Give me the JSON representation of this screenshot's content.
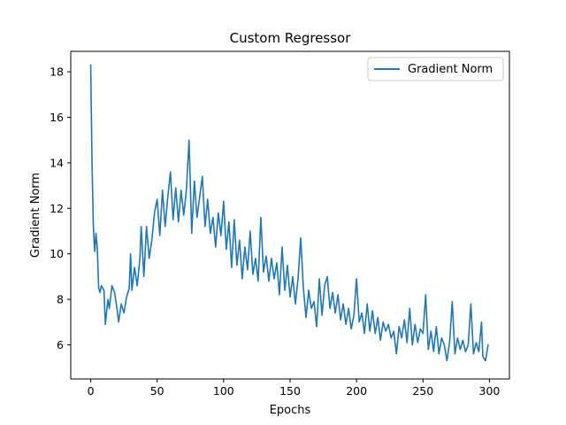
{
  "chart_data": {
    "type": "line",
    "title": "Custom Regressor",
    "xlabel": "Epochs",
    "ylabel": "Gradient Norm",
    "xlim": [
      -15,
      315
    ],
    "ylim": [
      4.5,
      18.9
    ],
    "xticks": [
      0,
      50,
      100,
      150,
      200,
      250,
      300
    ],
    "yticks": [
      6,
      8,
      10,
      12,
      14,
      16,
      18
    ],
    "grid": false,
    "legend": {
      "position": "top-right"
    },
    "series": [
      {
        "name": "Gradient Norm",
        "color": "#1f77b4",
        "keypoints": [
          [
            0,
            18.3
          ],
          [
            1,
            14.0
          ],
          [
            2,
            11.2
          ],
          [
            3,
            10.1
          ],
          [
            4,
            10.9
          ],
          [
            5,
            10.2
          ],
          [
            6,
            8.5
          ],
          [
            7,
            8.3
          ],
          [
            8,
            8.6
          ],
          [
            10,
            8.4
          ],
          [
            11,
            6.9
          ],
          [
            13,
            8.0
          ],
          [
            14,
            7.6
          ],
          [
            16,
            8.6
          ],
          [
            18,
            8.3
          ],
          [
            20,
            7.5
          ],
          [
            21,
            7.0
          ],
          [
            23,
            7.8
          ],
          [
            25,
            7.4
          ],
          [
            27,
            8.1
          ],
          [
            29,
            8.5
          ],
          [
            30,
            10.0
          ],
          [
            31,
            8.4
          ],
          [
            33,
            9.4
          ],
          [
            35,
            8.6
          ],
          [
            37,
            9.8
          ],
          [
            38,
            11.2
          ],
          [
            40,
            9.0
          ],
          [
            42,
            11.2
          ],
          [
            44,
            9.8
          ],
          [
            46,
            10.6
          ],
          [
            48,
            11.8
          ],
          [
            50,
            12.4
          ],
          [
            52,
            10.8
          ],
          [
            54,
            12.8
          ],
          [
            56,
            11.2
          ],
          [
            58,
            12.5
          ],
          [
            60,
            13.6
          ],
          [
            62,
            11.5
          ],
          [
            64,
            12.9
          ],
          [
            66,
            11.4
          ],
          [
            68,
            12.8
          ],
          [
            70,
            11.7
          ],
          [
            72,
            12.8
          ],
          [
            74,
            15.0
          ],
          [
            76,
            10.9
          ],
          [
            78,
            13.2
          ],
          [
            80,
            11.6
          ],
          [
            82,
            12.5
          ],
          [
            84,
            13.4
          ],
          [
            86,
            11.2
          ],
          [
            88,
            12.4
          ],
          [
            90,
            10.9
          ],
          [
            92,
            11.6
          ],
          [
            94,
            10.3
          ],
          [
            96,
            11.8
          ],
          [
            98,
            10.8
          ],
          [
            100,
            12.3
          ],
          [
            102,
            10.2
          ],
          [
            104,
            11.4
          ],
          [
            106,
            9.4
          ],
          [
            108,
            11.5
          ],
          [
            110,
            9.5
          ],
          [
            112,
            10.6
          ],
          [
            114,
            8.9
          ],
          [
            116,
            10.3
          ],
          [
            118,
            9.3
          ],
          [
            120,
            11.0
          ],
          [
            122,
            9.1
          ],
          [
            124,
            9.8
          ],
          [
            126,
            8.8
          ],
          [
            128,
            11.6
          ],
          [
            130,
            9.2
          ],
          [
            132,
            9.9
          ],
          [
            134,
            8.8
          ],
          [
            136,
            9.8
          ],
          [
            138,
            8.9
          ],
          [
            140,
            9.6
          ],
          [
            142,
            8.2
          ],
          [
            144,
            10.3
          ],
          [
            146,
            8.4
          ],
          [
            148,
            9.5
          ],
          [
            150,
            8.1
          ],
          [
            152,
            9.0
          ],
          [
            154,
            7.8
          ],
          [
            156,
            8.9
          ],
          [
            158,
            10.7
          ],
          [
            160,
            8.5
          ],
          [
            162,
            7.2
          ],
          [
            164,
            8.4
          ],
          [
            166,
            7.6
          ],
          [
            168,
            7.9
          ],
          [
            170,
            6.8
          ],
          [
            172,
            8.9
          ],
          [
            174,
            7.3
          ],
          [
            176,
            8.6
          ],
          [
            178,
            9.0
          ],
          [
            180,
            7.6
          ],
          [
            182,
            8.3
          ],
          [
            184,
            7.4
          ],
          [
            186,
            8.2
          ],
          [
            188,
            7.1
          ],
          [
            190,
            7.8
          ],
          [
            192,
            6.9
          ],
          [
            194,
            7.6
          ],
          [
            196,
            6.7
          ],
          [
            198,
            7.3
          ],
          [
            200,
            8.9
          ],
          [
            202,
            7.0
          ],
          [
            204,
            7.4
          ],
          [
            206,
            6.5
          ],
          [
            208,
            7.8
          ],
          [
            210,
            6.6
          ],
          [
            212,
            7.5
          ],
          [
            214,
            6.5
          ],
          [
            216,
            7.2
          ],
          [
            218,
            6.2
          ],
          [
            220,
            7.0
          ],
          [
            222,
            6.6
          ],
          [
            224,
            6.9
          ],
          [
            226,
            6.3
          ],
          [
            228,
            6.6
          ],
          [
            230,
            5.6
          ],
          [
            232,
            6.8
          ],
          [
            234,
            6.3
          ],
          [
            236,
            7.1
          ],
          [
            238,
            6.1
          ],
          [
            240,
            7.6
          ],
          [
            242,
            6.0
          ],
          [
            244,
            6.9
          ],
          [
            246,
            6.1
          ],
          [
            248,
            6.7
          ],
          [
            250,
            6.5
          ],
          [
            252,
            8.2
          ],
          [
            254,
            5.8
          ],
          [
            256,
            6.6
          ],
          [
            258,
            5.7
          ],
          [
            260,
            6.8
          ],
          [
            262,
            5.6
          ],
          [
            264,
            6.3
          ],
          [
            266,
            6.0
          ],
          [
            268,
            5.3
          ],
          [
            270,
            6.1
          ],
          [
            272,
            7.9
          ],
          [
            274,
            5.6
          ],
          [
            276,
            6.3
          ],
          [
            278,
            5.8
          ],
          [
            280,
            6.2
          ],
          [
            282,
            5.7
          ],
          [
            284,
            6.0
          ],
          [
            286,
            7.8
          ],
          [
            288,
            5.6
          ],
          [
            290,
            6.1
          ],
          [
            292,
            5.7
          ],
          [
            294,
            7.0
          ],
          [
            295,
            5.5
          ],
          [
            297,
            5.3
          ],
          [
            299,
            6.0
          ]
        ]
      }
    ]
  }
}
